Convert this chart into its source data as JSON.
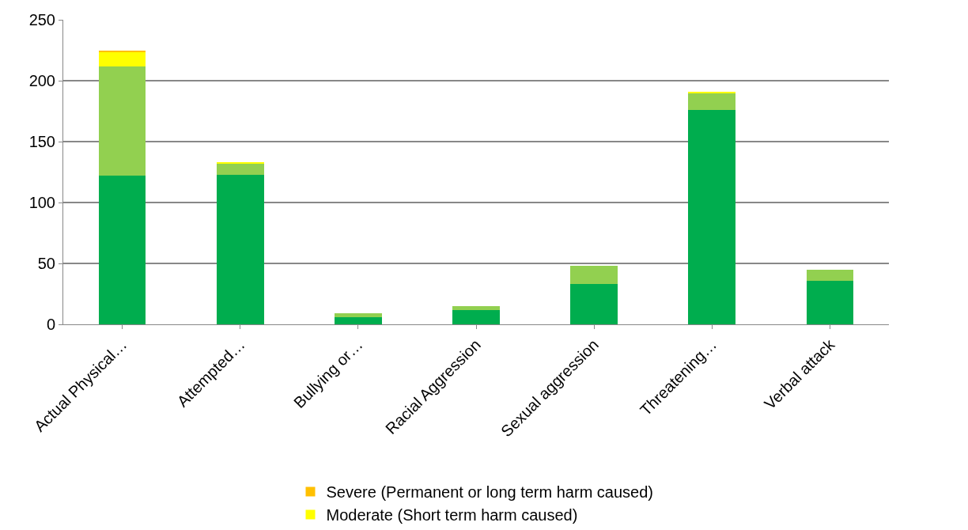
{
  "chart_data": {
    "type": "bar",
    "stacked": true,
    "categories": [
      "Actual Physical…",
      "Attempted…",
      "Bullying or…",
      "Racial Aggression",
      "Sexual aggression",
      "Threatening…",
      "Verbal attack"
    ],
    "series": [
      {
        "color": "#00ad4e",
        "values": [
          122,
          123,
          6,
          12,
          33,
          176,
          36
        ]
      },
      {
        "color": "#92d050",
        "values": [
          90,
          9,
          3,
          3,
          15,
          14,
          9
        ]
      },
      {
        "name": "Moderate (Short term harm caused)",
        "color": "#ffff00",
        "values": [
          12,
          1,
          0,
          0,
          0,
          1,
          0
        ]
      },
      {
        "name": "Severe (Permanent or long term harm caused)",
        "color": "#ffc000",
        "values": [
          1,
          0,
          0,
          0,
          0,
          0,
          0
        ]
      }
    ],
    "ylim": [
      0,
      250
    ],
    "yticks": [
      0,
      50,
      100,
      150,
      200,
      250
    ],
    "grid": "y",
    "legend": "bottom"
  }
}
